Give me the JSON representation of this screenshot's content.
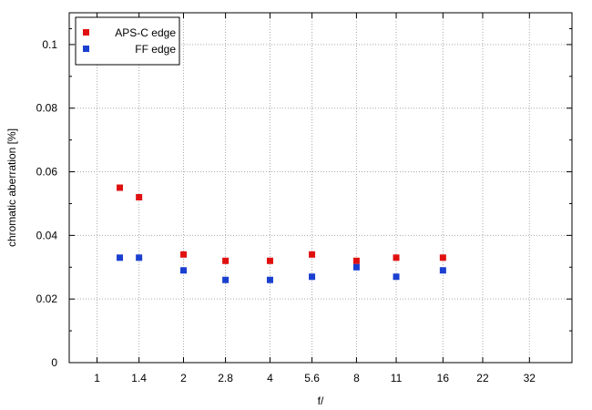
{
  "chart_data": {
    "type": "scatter",
    "xlabel": "f/",
    "ylabel": "chromatic aberration [%]",
    "x_scale": "log",
    "x_ticks": [
      "1",
      "1.4",
      "2",
      "2.8",
      "4",
      "5.6",
      "8",
      "11",
      "16",
      "22",
      "32"
    ],
    "xlim": [
      0.8,
      45
    ],
    "ylim": [
      0,
      0.11
    ],
    "y_ticks": [
      0,
      0.02,
      0.04,
      0.06,
      0.08,
      0.1
    ],
    "y_tick_labels": [
      "0",
      "0.02",
      "0.04",
      "0.06",
      "0.08",
      "0.1"
    ],
    "grid": true,
    "legend_position": "top-left",
    "series": [
      {
        "name": "APS-C edge",
        "color": "#e01010",
        "x": [
          1.2,
          1.4,
          2,
          2.8,
          4,
          5.6,
          8,
          11,
          16
        ],
        "values": [
          0.055,
          0.052,
          0.034,
          0.032,
          0.032,
          0.034,
          0.032,
          0.033,
          0.033
        ]
      },
      {
        "name": "FF edge",
        "color": "#1a3fd0",
        "x": [
          1.2,
          1.4,
          2,
          2.8,
          4,
          5.6,
          8,
          11,
          16
        ],
        "values": [
          0.033,
          0.033,
          0.029,
          0.026,
          0.026,
          0.027,
          0.03,
          0.027,
          0.029
        ]
      }
    ]
  }
}
